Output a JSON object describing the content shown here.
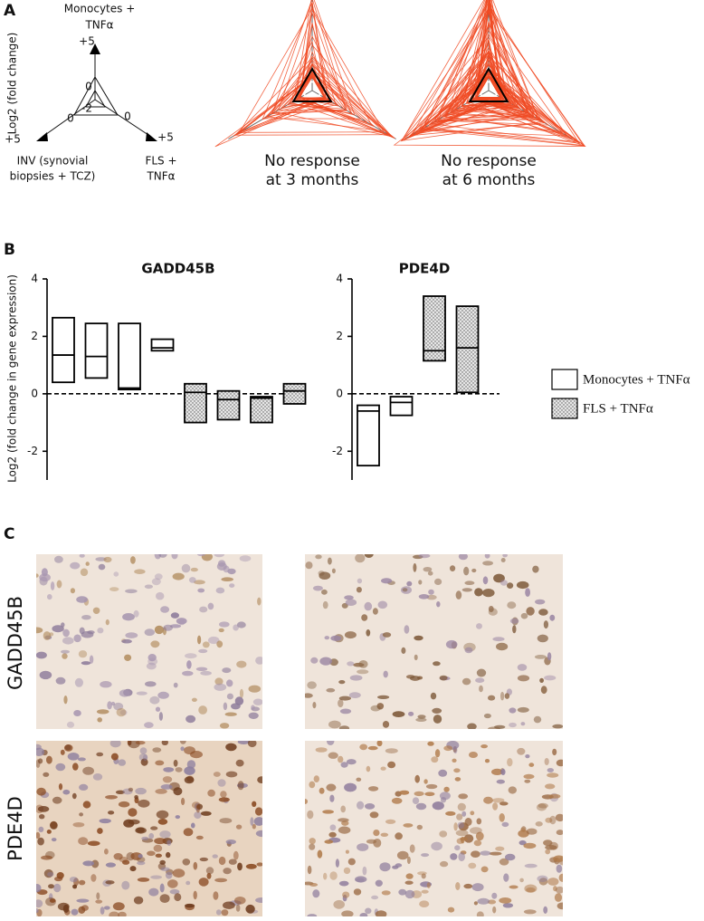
{
  "panel_labels": [
    "A",
    "B",
    "C"
  ],
  "panel_a": {
    "ylabel": "Log2 (fold change)",
    "key": {
      "top": {
        "label": [
          "Monocytes +",
          "TNFα"
        ],
        "max": "+5"
      },
      "left": {
        "label": [
          "INV (synovial",
          "biopsies + TCZ)"
        ],
        "max": "+5"
      },
      "right": {
        "label": [
          "FLS +",
          "TNFα"
        ],
        "max": "+5"
      },
      "ring_labels": [
        "0",
        "-2",
        "0",
        "0"
      ]
    },
    "captions": [
      [
        "No response",
        "at 3 months"
      ],
      [
        "No response",
        "at 6 months"
      ]
    ],
    "line_color": "#f04a23"
  },
  "panel_b": {
    "ylabel": "Log2 (fold change in gene expression)",
    "legend": [
      {
        "label": "Monocytes + TNFα",
        "style": "open"
      },
      {
        "label": "FLS + TNFα",
        "style": "dotted"
      }
    ]
  },
  "chart_data": [
    {
      "type": "floating-box",
      "title": "GADD45B",
      "ylim": [
        -3,
        4
      ],
      "yticks": [
        -2,
        0,
        2,
        4
      ],
      "reference_line": 0,
      "series": [
        {
          "style": "open",
          "min": [
            0.4,
            0.55,
            0.15,
            1.5
          ],
          "median": [
            1.35,
            1.3,
            0.2,
            1.6
          ],
          "max": [
            2.65,
            2.45,
            2.45,
            1.9
          ]
        },
        {
          "style": "dotted",
          "min": [
            -1.0,
            -0.9,
            -1.0,
            -0.35
          ],
          "median": [
            0.05,
            -0.2,
            -0.15,
            0.1
          ],
          "max": [
            0.35,
            0.1,
            -0.1,
            0.35
          ]
        }
      ]
    },
    {
      "type": "floating-box",
      "title": "PDE4D",
      "ylim": [
        -3,
        4
      ],
      "yticks": [
        -2,
        0,
        2,
        4
      ],
      "reference_line": 0,
      "series": [
        {
          "style": "open",
          "min": [
            -2.5,
            -0.75
          ],
          "median": [
            -0.6,
            -0.3
          ],
          "max": [
            -0.4,
            -0.1
          ]
        },
        {
          "style": "dotted",
          "min": [
            1.15,
            0.05
          ],
          "median": [
            1.5,
            1.6
          ],
          "max": [
            3.4,
            3.05
          ]
        }
      ]
    }
  ],
  "panel_c": {
    "rows": [
      "GADD45B",
      "PDE4D"
    ]
  }
}
